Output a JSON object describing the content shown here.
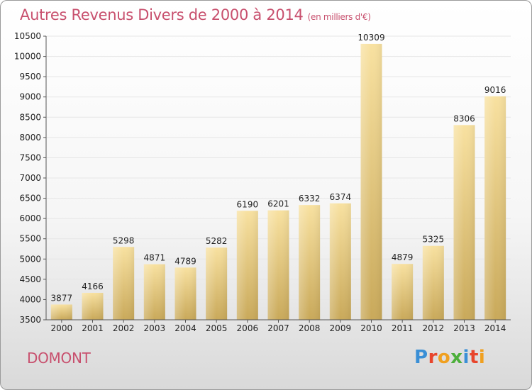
{
  "header": {
    "title": "Autres Revenus Divers de 2000 à 2014",
    "unit": "(en milliers d'€)"
  },
  "footer": {
    "city": "DOMONT",
    "logo_text": "Proxiti",
    "logo_colors": [
      "#3a8fd6",
      "#e8452c",
      "#f0a020",
      "#4caf3a",
      "#3a8fd6",
      "#e8452c",
      "#f0a020"
    ]
  },
  "colors": {
    "title": "#c8506e",
    "bar_top": "#f8e1a0",
    "bar_bottom": "#c9a95a",
    "grid": "#e6e6e6"
  },
  "chart_data": {
    "type": "bar",
    "title": "Autres Revenus Divers de 2000 à 2014",
    "categories": [
      "2000",
      "2001",
      "2002",
      "2003",
      "2004",
      "2005",
      "2006",
      "2007",
      "2008",
      "2009",
      "2010",
      "2011",
      "2012",
      "2013",
      "2014"
    ],
    "values": [
      3877,
      4166,
      5298,
      4871,
      4789,
      5282,
      6190,
      6201,
      6332,
      6374,
      10309,
      4879,
      5325,
      8306,
      9016
    ],
    "ylim": [
      3500,
      10500
    ],
    "yticks": [
      3500,
      4000,
      4500,
      5000,
      5500,
      6000,
      6500,
      7000,
      7500,
      8000,
      8500,
      9000,
      9500,
      10000,
      10500
    ],
    "grid": true,
    "data_labels": true
  }
}
